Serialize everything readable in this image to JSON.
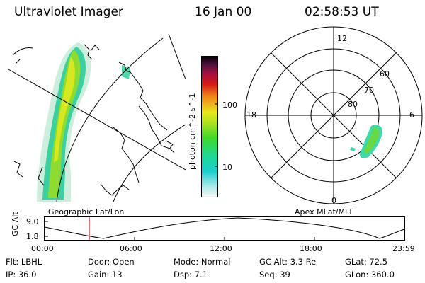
{
  "header": {
    "title": "Ultraviolet Imager",
    "date": "16 Jan 00",
    "time": "02:58:53 UT"
  },
  "left_panel": {
    "label": "Geographic Lat/Lon"
  },
  "right_panel": {
    "label": "Apex  MLat/MLT",
    "mlt_labels": [
      "12",
      "18",
      "6",
      "0"
    ],
    "lat_labels": [
      "60",
      "70",
      "80"
    ]
  },
  "colorbar": {
    "unit": "photon cm^-2 s^-1",
    "tick_labels": [
      "100",
      "10"
    ],
    "scale": "log",
    "colors": [
      "#ffffff",
      "#1ccfcf",
      "#2ed82e",
      "#d8e81a",
      "#f0a020",
      "#d81818",
      "#80103a",
      "#000000"
    ]
  },
  "altitude_plot": {
    "ylabel": "GC Alt",
    "y_ticks": [
      "9.0",
      "1.8"
    ],
    "x_ticks": [
      "00:00",
      "06:00",
      "12:00",
      "18:00",
      "23:59"
    ],
    "current_time_hours": 2.98,
    "marker_color": "#d01010"
  },
  "info": {
    "filter": "Flt: LBHL",
    "door": "Door: Open",
    "mode": "Mode: Normal",
    "gc_alt": "GC Alt: 3.3 Re",
    "glat": "GLat:  72.5",
    "ip": "IP: 36.0",
    "gain": "Gain: 13",
    "dsp": "Dsp:     7.1",
    "seq": "Seq: 39",
    "glon": "GLon: 360.0"
  }
}
